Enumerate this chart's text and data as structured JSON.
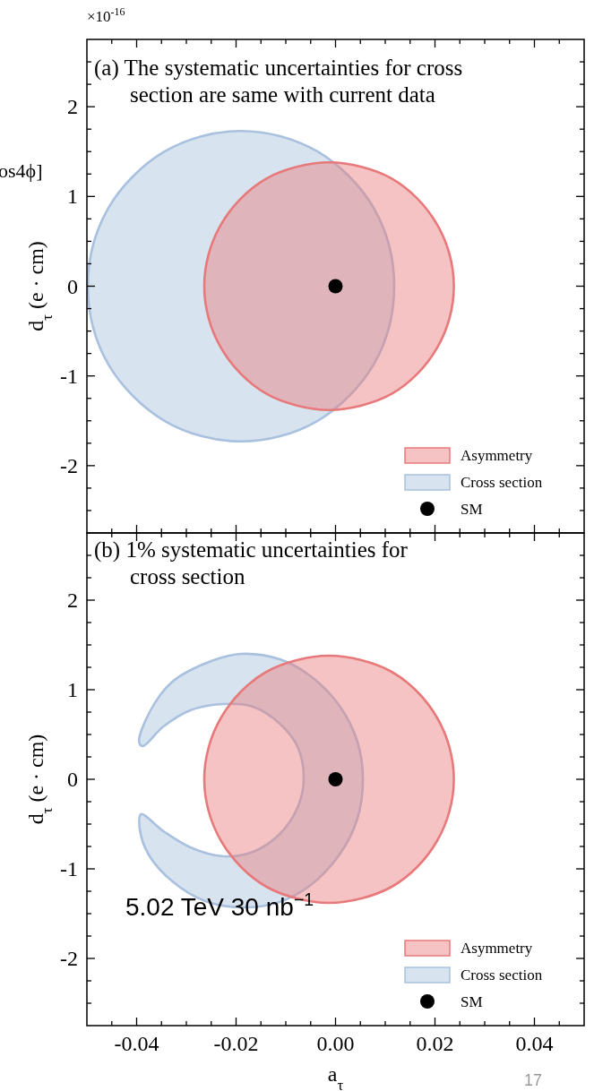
{
  "chart_data": [
    {
      "type": "area",
      "annotations": [
        "(a) The systematic uncertainties for cross section are same with current data",
        "×10$^{-16}$",
        "os4ϕ]"
      ],
      "ylabel": "d$_{τ}$ (e · cm)",
      "xlim": [
        -0.05,
        0.05
      ],
      "ylim": [
        -2.75,
        2.75
      ],
      "xticks": [
        {
          "value": -0.045,
          "label": null
        },
        -0.04,
        {
          "value": -0.035,
          "label": null
        },
        {
          "value": -0.03,
          "label": null
        },
        {
          "value": -0.025,
          "label": null
        },
        -0.02,
        {
          "value": -0.015,
          "label": null
        },
        {
          "value": -0.01,
          "label": null
        },
        {
          "value": -0.005,
          "label": null
        },
        0,
        {
          "value": 0.005,
          "label": null
        },
        {
          "value": 0.01,
          "label": null
        },
        {
          "value": 0.015,
          "label": null
        },
        0.02,
        {
          "value": 0.025,
          "label": null
        },
        {
          "value": 0.03,
          "label": null
        },
        {
          "value": 0.035,
          "label": null
        },
        0.04,
        {
          "value": 0.045,
          "label": null
        }
      ],
      "yticks": [
        {
          "value": -2.5,
          "label": null
        },
        {
          "value": -2.25,
          "label": null
        },
        -2,
        {
          "value": -1.75,
          "label": null
        },
        {
          "value": -1.5,
          "label": null
        },
        {
          "value": -1.25,
          "label": null
        },
        -1,
        {
          "value": -0.75,
          "label": null
        },
        {
          "value": -0.5,
          "label": null
        },
        {
          "value": -0.25,
          "label": null
        },
        0,
        {
          "value": 0.25,
          "label": null
        },
        {
          "value": 0.5,
          "label": null
        },
        {
          "value": 0.75,
          "label": null
        },
        1,
        {
          "value": 1.25,
          "label": null
        },
        {
          "value": 1.5,
          "label": null
        },
        {
          "value": 1.75,
          "label": null
        },
        2,
        {
          "value": 2.25,
          "label": null
        },
        {
          "value": 2.5,
          "label": null
        }
      ],
      "tick_labels": "y",
      "legend": "bottom right",
      "series": [
        {
          "name": "Cross section",
          "color": "#a9c1de",
          "x": [
            0.0118,
            0.0108,
            0.0077,
            0.0028,
            -0.0036,
            -0.011,
            -0.019,
            -0.027,
            -0.0344,
            -0.0408,
            -0.0457,
            -0.0488,
            -0.0498,
            -0.0488,
            -0.0457,
            -0.0408,
            -0.0344,
            -0.027,
            -0.019,
            -0.011,
            -0.0036,
            0.0028,
            0.0077,
            0.0108
          ],
          "values": [
            0,
            0.45,
            0.87,
            1.22,
            1.5,
            1.67,
            1.73,
            1.67,
            1.5,
            1.22,
            0.87,
            0.45,
            0,
            -0.45,
            -0.87,
            -1.22,
            -1.5,
            -1.67,
            -1.73,
            -1.67,
            -1.5,
            -1.22,
            -0.87,
            -0.45
          ]
        },
        {
          "name": "Asymmetry",
          "color": "#e8797b",
          "x": [
            0.0238,
            0.0229,
            0.0204,
            0.0164,
            0.0113,
            0.0052,
            -0.0013,
            -0.0078,
            -0.0139,
            -0.019,
            -0.023,
            -0.0255,
            -0.0264,
            -0.0255,
            -0.023,
            -0.019,
            -0.0139,
            -0.0078,
            -0.0013,
            0.0052,
            0.0113,
            0.0164,
            0.0204,
            0.0229
          ],
          "values": [
            0,
            0.36,
            0.69,
            0.98,
            1.2,
            1.33,
            1.38,
            1.33,
            1.2,
            0.98,
            0.69,
            0.36,
            0,
            -0.36,
            -0.69,
            -0.98,
            -1.2,
            -1.33,
            -1.38,
            -1.33,
            -1.2,
            -0.98,
            -0.69,
            -0.36
          ]
        },
        {
          "name": "SM",
          "type": "scatter",
          "color": "#000000",
          "marker": "circle",
          "x": [
            0
          ],
          "values": [
            0
          ]
        }
      ]
    },
    {
      "type": "area",
      "annotations": [
        "(b) 1% systematic uncertainties for cross section",
        "5.02 TeV 30 nb$^{−1}$",
        "17"
      ],
      "xlabel": "a$_{τ}$",
      "ylabel": "d$_{τ}$ (e · cm)",
      "xlim": [
        -0.05,
        0.05
      ],
      "ylim": [
        -2.75,
        2.75
      ],
      "xticks": [
        {
          "value": -0.045,
          "label": null
        },
        -0.04,
        {
          "value": -0.035,
          "label": null
        },
        {
          "value": -0.03,
          "label": null
        },
        {
          "value": -0.025,
          "label": null
        },
        -0.02,
        {
          "value": -0.015,
          "label": null
        },
        {
          "value": -0.01,
          "label": null
        },
        {
          "value": -0.005,
          "label": null
        },
        {
          "value": 0,
          "label": "0.00"
        },
        {
          "value": 0.005,
          "label": null
        },
        {
          "value": 0.01,
          "label": null
        },
        {
          "value": 0.015,
          "label": null
        },
        0.02,
        {
          "value": 0.025,
          "label": null
        },
        {
          "value": 0.03,
          "label": null
        },
        {
          "value": 0.035,
          "label": null
        },
        0.04,
        {
          "value": 0.045,
          "label": null
        }
      ],
      "yticks": [
        {
          "value": -2.5,
          "label": null
        },
        {
          "value": -2.25,
          "label": null
        },
        -2,
        {
          "value": -1.75,
          "label": null
        },
        {
          "value": -1.5,
          "label": null
        },
        {
          "value": -1.25,
          "label": null
        },
        -1,
        {
          "value": -0.75,
          "label": null
        },
        {
          "value": -0.5,
          "label": null
        },
        {
          "value": -0.25,
          "label": null
        },
        0,
        {
          "value": 0.25,
          "label": null
        },
        {
          "value": 0.5,
          "label": null
        },
        {
          "value": 0.75,
          "label": null
        },
        1,
        {
          "value": 1.25,
          "label": null
        },
        {
          "value": 1.5,
          "label": null
        },
        {
          "value": 1.75,
          "label": null
        },
        2,
        {
          "value": 2.25,
          "label": null
        },
        {
          "value": 2.5,
          "label": null
        }
      ],
      "legend": "bottom right",
      "series": [
        {
          "name": "Cross section",
          "color": "#a9c1de",
          "x": [
            -0.0395,
            -0.0373,
            -0.0328,
            -0.025,
            -0.019,
            -0.0112,
            -0.0052,
            0.0008,
            0.0044,
            0.0055,
            0.0044,
            0.0008,
            -0.0052,
            -0.0118,
            -0.019,
            -0.0262,
            -0.0328,
            -0.0376,
            -0.0394,
            -0.0391,
            -0.0346,
            -0.0292,
            -0.0226,
            -0.0166,
            -0.0112,
            -0.0076,
            -0.0064,
            -0.0076,
            -0.0112,
            -0.0166,
            -0.0226,
            -0.0292,
            -0.0346,
            -0.0388
          ],
          "values": [
            0.42,
            0.76,
            1.09,
            1.32,
            1.4,
            1.34,
            1.16,
            0.82,
            0.42,
            0,
            -0.44,
            -0.84,
            -1.19,
            -1.38,
            -1.43,
            -1.36,
            -1.14,
            -0.84,
            -0.54,
            -0.39,
            -0.58,
            -0.76,
            -0.86,
            -0.81,
            -0.61,
            -0.31,
            0,
            0.36,
            0.62,
            0.81,
            0.84,
            0.77,
            0.59,
            0.37
          ]
        },
        {
          "name": "Asymmetry",
          "color": "#e8797b",
          "x": [
            0.0238,
            0.0229,
            0.0204,
            0.0164,
            0.0113,
            0.0052,
            -0.0013,
            -0.0078,
            -0.0139,
            -0.019,
            -0.023,
            -0.0255,
            -0.0264,
            -0.0255,
            -0.023,
            -0.019,
            -0.0139,
            -0.0078,
            -0.0013,
            0.0052,
            0.0113,
            0.0164,
            0.0204,
            0.0229
          ],
          "values": [
            0,
            0.36,
            0.69,
            0.98,
            1.2,
            1.33,
            1.38,
            1.33,
            1.2,
            0.98,
            0.69,
            0.36,
            0,
            -0.36,
            -0.69,
            -0.98,
            -1.2,
            -1.33,
            -1.38,
            -1.33,
            -1.2,
            -0.98,
            -0.69,
            -0.36
          ]
        },
        {
          "name": "SM",
          "type": "scatter",
          "color": "#000000",
          "marker": "circle",
          "x": [
            0
          ],
          "values": [
            0
          ]
        }
      ]
    }
  ]
}
